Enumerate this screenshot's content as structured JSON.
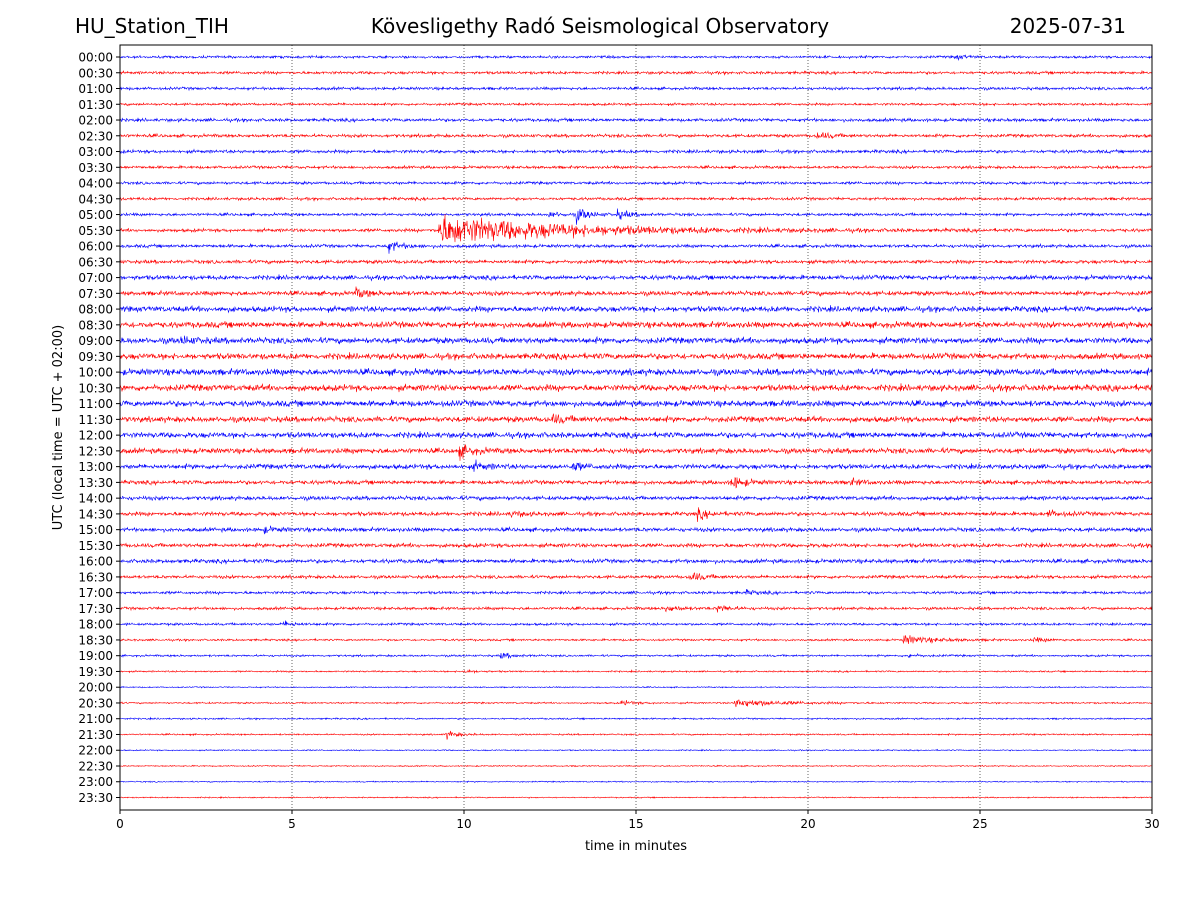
{
  "header": {
    "station": "HU_Station_TIH",
    "observatory": "Kövesligethy Radó Seismological Observatory",
    "date": "2025-07-31"
  },
  "colors": {
    "even_row": "#0000ff",
    "odd_row": "#ff0000",
    "grid": "#000000"
  },
  "chart_data": {
    "type": "helicorder",
    "xlabel": "time in minutes",
    "ylabel": "UTC (local time = UTC + 02:00)",
    "xlim": [
      0,
      30
    ],
    "xticks": [
      "0",
      "5",
      "10",
      "15",
      "20",
      "25",
      "30"
    ],
    "grid": "vertical dotted at 5-minute intervals",
    "row_interval_minutes": 30,
    "row_colors": [
      "blue",
      "red"
    ],
    "rows": [
      {
        "label": "00:00",
        "noise": 0.3,
        "events": [
          {
            "t": 24.3,
            "amp": 0.5
          }
        ]
      },
      {
        "label": "00:30",
        "noise": 0.35,
        "events": []
      },
      {
        "label": "01:00",
        "noise": 0.35,
        "events": []
      },
      {
        "label": "01:30",
        "noise": 0.3,
        "events": []
      },
      {
        "label": "02:00",
        "noise": 0.4,
        "events": []
      },
      {
        "label": "02:30",
        "noise": 0.4,
        "events": [
          {
            "t": 20.3,
            "amp": 0.8
          }
        ]
      },
      {
        "label": "03:00",
        "noise": 0.4,
        "events": []
      },
      {
        "label": "03:30",
        "noise": 0.35,
        "events": []
      },
      {
        "label": "04:00",
        "noise": 0.35,
        "events": []
      },
      {
        "label": "04:30",
        "noise": 0.35,
        "events": []
      },
      {
        "label": "05:00",
        "noise": 0.35,
        "events": [
          {
            "t": 13.3,
            "amp": 1.6
          },
          {
            "t": 14.5,
            "amp": 1.0
          },
          {
            "t": 12.5,
            "amp": 0.6
          }
        ]
      },
      {
        "label": "05:30",
        "noise": 0.4,
        "events": [
          {
            "t": 9.3,
            "amp": 3.8,
            "decay": 3.5
          }
        ]
      },
      {
        "label": "06:00",
        "noise": 0.4,
        "events": [
          {
            "t": 7.8,
            "amp": 1.4
          }
        ]
      },
      {
        "label": "06:30",
        "noise": 0.45,
        "events": []
      },
      {
        "label": "07:00",
        "noise": 0.55,
        "events": []
      },
      {
        "label": "07:30",
        "noise": 0.55,
        "events": [
          {
            "t": 6.9,
            "amp": 1.0
          }
        ]
      },
      {
        "label": "08:00",
        "noise": 0.7,
        "events": []
      },
      {
        "label": "08:30",
        "noise": 0.75,
        "events": []
      },
      {
        "label": "09:00",
        "noise": 0.75,
        "events": [
          {
            "t": 1.8,
            "amp": 0.8
          }
        ]
      },
      {
        "label": "09:30",
        "noise": 0.75,
        "events": []
      },
      {
        "label": "10:00",
        "noise": 0.8,
        "events": []
      },
      {
        "label": "10:30",
        "noise": 0.8,
        "events": []
      },
      {
        "label": "11:00",
        "noise": 0.75,
        "events": []
      },
      {
        "label": "11:30",
        "noise": 0.7,
        "events": [
          {
            "t": 12.6,
            "amp": 0.9
          }
        ]
      },
      {
        "label": "12:00",
        "noise": 0.7,
        "events": []
      },
      {
        "label": "12:30",
        "noise": 0.65,
        "events": [
          {
            "t": 9.9,
            "amp": 1.3
          }
        ]
      },
      {
        "label": "13:00",
        "noise": 0.6,
        "events": [
          {
            "t": 10.3,
            "amp": 0.9
          },
          {
            "t": 13.2,
            "amp": 0.8
          }
        ]
      },
      {
        "label": "13:30",
        "noise": 0.5,
        "events": [
          {
            "t": 17.8,
            "amp": 1.6
          },
          {
            "t": 21.2,
            "amp": 0.7
          }
        ]
      },
      {
        "label": "14:00",
        "noise": 0.5,
        "events": []
      },
      {
        "label": "14:30",
        "noise": 0.5,
        "events": [
          {
            "t": 16.8,
            "amp": 1.1
          },
          {
            "t": 11.4,
            "amp": 0.6
          },
          {
            "t": 27.0,
            "amp": 0.7
          }
        ]
      },
      {
        "label": "15:00",
        "noise": 0.5,
        "events": [
          {
            "t": 4.2,
            "amp": 0.6
          }
        ]
      },
      {
        "label": "15:30",
        "noise": 0.5,
        "events": []
      },
      {
        "label": "16:00",
        "noise": 0.5,
        "events": []
      },
      {
        "label": "16:30",
        "noise": 0.4,
        "events": [
          {
            "t": 16.6,
            "amp": 1.1
          }
        ]
      },
      {
        "label": "17:00",
        "noise": 0.35,
        "events": [
          {
            "t": 18.2,
            "amp": 0.5
          }
        ]
      },
      {
        "label": "17:30",
        "noise": 0.35,
        "events": [
          {
            "t": 15.9,
            "amp": 0.8
          },
          {
            "t": 17.4,
            "amp": 0.8
          }
        ]
      },
      {
        "label": "18:00",
        "noise": 0.3,
        "events": [
          {
            "t": 4.8,
            "amp": 0.6
          }
        ]
      },
      {
        "label": "18:30",
        "noise": 0.25,
        "events": [
          {
            "t": 22.8,
            "amp": 1.1,
            "decay": 0.8
          },
          {
            "t": 26.6,
            "amp": 0.5
          }
        ]
      },
      {
        "label": "19:00",
        "noise": 0.25,
        "events": [
          {
            "t": 11.1,
            "amp": 0.7
          },
          {
            "t": 22.9,
            "amp": 0.5
          }
        ]
      },
      {
        "label": "19:30",
        "noise": 0.2,
        "events": [
          {
            "t": 10.0,
            "amp": 0.4
          }
        ]
      },
      {
        "label": "20:00",
        "noise": 0.15,
        "events": []
      },
      {
        "label": "20:30",
        "noise": 0.2,
        "events": [
          {
            "t": 17.9,
            "amp": 1.1,
            "decay": 1.2
          },
          {
            "t": 14.6,
            "amp": 0.6
          }
        ]
      },
      {
        "label": "21:00",
        "noise": 0.2,
        "events": []
      },
      {
        "label": "21:30",
        "noise": 0.2,
        "events": [
          {
            "t": 9.5,
            "amp": 0.9
          }
        ]
      },
      {
        "label": "22:00",
        "noise": 0.15,
        "events": []
      },
      {
        "label": "22:30",
        "noise": 0.15,
        "events": []
      },
      {
        "label": "23:00",
        "noise": 0.15,
        "events": []
      },
      {
        "label": "23:30",
        "noise": 0.15,
        "events": []
      }
    ]
  }
}
